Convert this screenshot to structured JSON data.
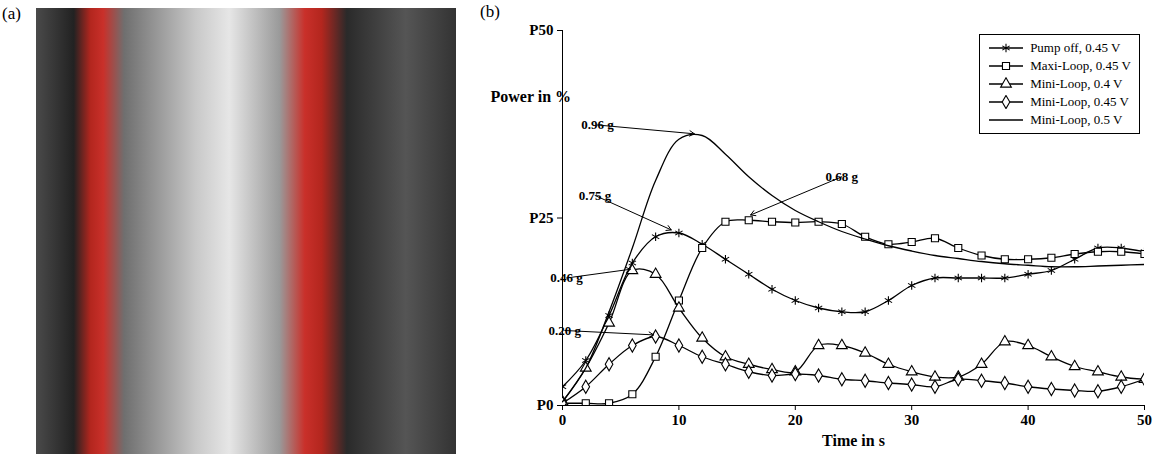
{
  "panel_labels": [
    "(a)",
    "(b)"
  ],
  "chart_data": {
    "type": "line",
    "xlabel": "Time in s",
    "ylabel": "Power in %",
    "x": [
      0,
      2,
      4,
      6,
      8,
      10,
      12,
      14,
      16,
      18,
      20,
      22,
      24,
      26,
      28,
      30,
      32,
      34,
      36,
      38,
      40,
      42,
      44,
      46,
      48,
      50
    ],
    "xlim": [
      0,
      50
    ],
    "xticks": [
      0,
      10,
      20,
      30,
      40,
      50
    ],
    "ylim": [
      0,
      50
    ],
    "yticks": [
      {
        "value": 0,
        "label": "P0"
      },
      {
        "value": 25,
        "label": "P25"
      },
      {
        "value": 50,
        "label": "P50"
      }
    ],
    "grid": false,
    "legend": "top-right",
    "series": [
      {
        "name": "Pump off, 0.45 V",
        "color": "#000000",
        "marker": "asterisk",
        "line_style": "solid",
        "values": [
          2.5,
          6,
          12,
          19,
          22.5,
          23,
          21.5,
          19.5,
          17.5,
          15.5,
          14,
          13,
          12.5,
          12.5,
          14,
          16,
          17,
          17,
          17,
          17,
          17.5,
          18,
          19.5,
          21,
          21,
          20.5
        ]
      },
      {
        "name": "Maxi-Loop, 0.45 V",
        "color": "#000000",
        "marker": "square",
        "line_style": "solid",
        "values": [
          0.3,
          0.3,
          0.3,
          1.5,
          6.5,
          14,
          21,
          24.5,
          24.7,
          24.5,
          24.4,
          24.5,
          24.2,
          22.5,
          21.5,
          21.8,
          22.3,
          21,
          20,
          19.5,
          19.5,
          19.7,
          20.2,
          20.5,
          20.5,
          20.2
        ]
      },
      {
        "name": "Mini-Loop, 0.4 V",
        "color": "#000000",
        "marker": "triangle",
        "line_style": "solid",
        "values": [
          0.5,
          5,
          11,
          18,
          17.5,
          13,
          9,
          6.5,
          5.5,
          4.8,
          4.5,
          8,
          8,
          7,
          5.5,
          4.5,
          3.8,
          3.8,
          5.5,
          8.5,
          8,
          6.5,
          5.2,
          4.5,
          3.8,
          3.5
        ]
      },
      {
        "name": "Mini-Loop, 0.45 V",
        "color": "#000000",
        "marker": "diamond",
        "line_style": "solid",
        "values": [
          0.3,
          2.5,
          5.5,
          8,
          9.2,
          8,
          6.5,
          5.5,
          4.5,
          4,
          4.2,
          4,
          3.5,
          3.3,
          3,
          2.8,
          2.5,
          3.5,
          3.3,
          3,
          2.5,
          2.2,
          2,
          1.9,
          2.5,
          3.5
        ]
      },
      {
        "name": "Mini-Loop, 0.5 V",
        "color": "#000000",
        "marker": "none",
        "line_style": "solid",
        "values": [
          0.5,
          5,
          12.5,
          21,
          30,
          35.5,
          36,
          33.5,
          30.5,
          28,
          26,
          24.5,
          23.2,
          22.2,
          21.3,
          20.6,
          20,
          19.6,
          19.2,
          18.9,
          18.7,
          18.5,
          18.5,
          18.6,
          18.7,
          18.8
        ]
      }
    ],
    "annotations": [
      {
        "text": "0.96 g",
        "x": 3,
        "y": 37.4,
        "target_x": 11.5,
        "target_y": 36.2
      },
      {
        "text": "0.75 g",
        "x": 2.8,
        "y": 28,
        "target_x": 9.5,
        "target_y": 23.3
      },
      {
        "text": "0.46 g",
        "x": 0.35,
        "y": 17,
        "target_x": 6,
        "target_y": 18.2
      },
      {
        "text": "0.20 g",
        "x": 0.2,
        "y": 10,
        "target_x": 8,
        "target_y": 9.4
      },
      {
        "text": "0.68 g",
        "x": 24,
        "y": 30.5,
        "target_x": 16,
        "target_y": 25.3
      }
    ]
  }
}
